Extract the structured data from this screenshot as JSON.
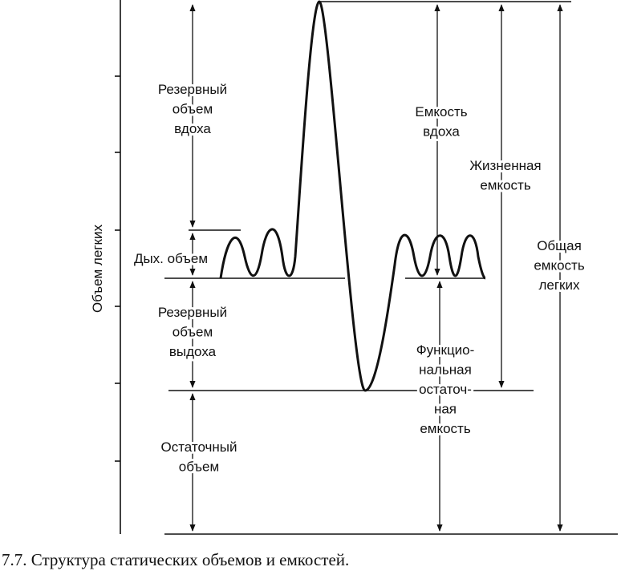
{
  "axis_label": "Объем легких",
  "volumes": [
    {
      "lines": [
        "Резервный",
        "объем",
        "вдоха"
      ]
    },
    {
      "lines": [
        "Дых. объем"
      ]
    },
    {
      "lines": [
        "Резервный",
        "объем",
        "выдоха"
      ]
    },
    {
      "lines": [
        "Остаточный",
        "объем"
      ]
    }
  ],
  "capacities": [
    {
      "lines": [
        "Емкость",
        "вдоха"
      ]
    },
    {
      "lines": [
        "Жизненная",
        "емкость"
      ]
    },
    {
      "lines": [
        "Общая",
        "емкость",
        "легких"
      ]
    },
    {
      "lines": [
        "Функцио-",
        "нальная",
        "остаточ-",
        "ная",
        "емкость"
      ]
    }
  ],
  "caption": "7.7. Структура статических объемов и емкостей."
}
